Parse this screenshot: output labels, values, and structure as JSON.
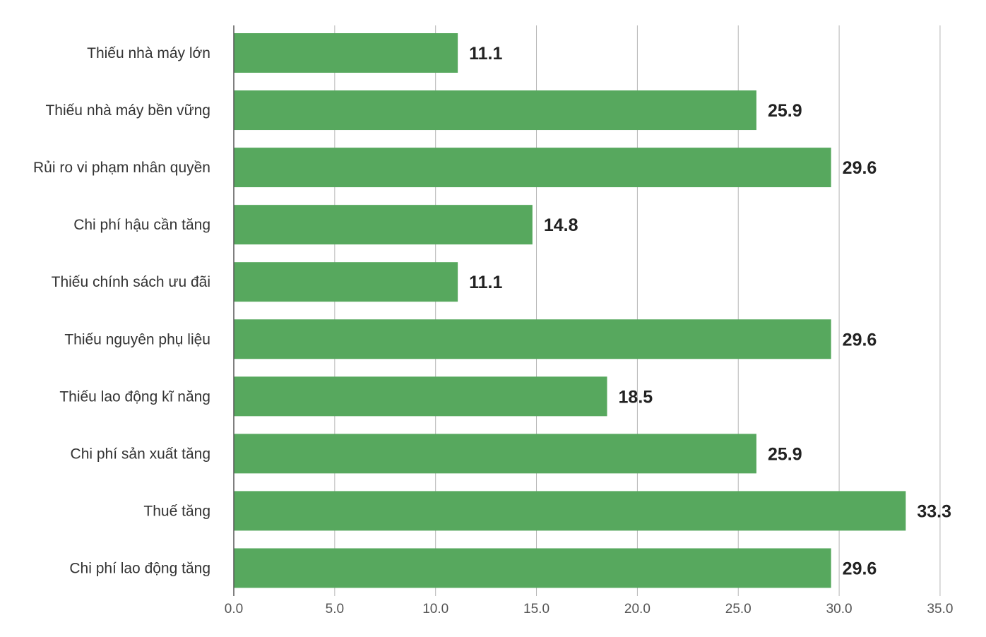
{
  "chart_data": {
    "type": "bar",
    "orientation": "horizontal",
    "categories": [
      "Thiếu nhà máy lớn",
      "Thiếu nhà máy bền vững",
      "Rủi ro vi phạm nhân quyền",
      "Chi phí hậu cần tăng",
      "Thiếu chính sách ưu đãi",
      "Thiếu nguyên phụ liệu",
      "Thiếu lao động kĩ năng",
      "Chi phí sản xuất tăng",
      "Thuế tăng",
      "Chi phí lao động tăng"
    ],
    "values": [
      11.1,
      25.9,
      29.6,
      14.8,
      11.1,
      29.6,
      18.5,
      25.9,
      33.3,
      29.6
    ],
    "value_labels": [
      "11.1",
      "25.9",
      "29.6",
      "14.8",
      "11.1",
      "29.6",
      "18.5",
      "25.9",
      "33.3",
      "29.6"
    ],
    "xticks": [
      "0.0",
      "5.0",
      "10.0",
      "15.0",
      "20.0",
      "25.0",
      "30.0",
      "35.0"
    ],
    "xlim": [
      0,
      35
    ],
    "grid": "vertical",
    "title": "",
    "xlabel": "",
    "ylabel": "",
    "colors": {
      "bar": "#57a85e",
      "grid": "#b5b5b5",
      "axis": "#555555"
    }
  }
}
